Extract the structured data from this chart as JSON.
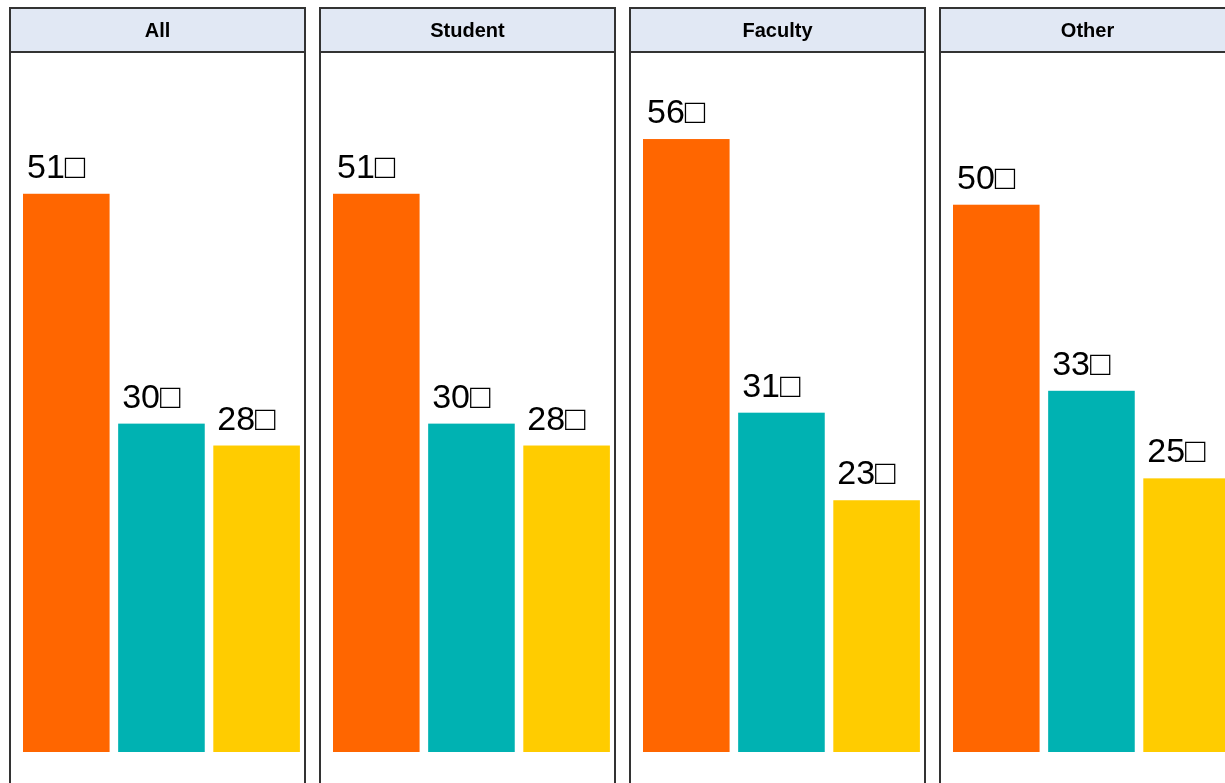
{
  "chart_data": [
    {
      "type": "bar",
      "title": "All",
      "categories": [
        null,
        null,
        null
      ],
      "values": [
        51,
        30,
        28
      ],
      "colors": [
        "#ff6600",
        "#00b2b2",
        "#ffcc00"
      ],
      "value_labels": [
        "51□",
        "30□",
        "28□"
      ]
    },
    {
      "type": "bar",
      "title": "Student",
      "categories": [
        null,
        null,
        null
      ],
      "values": [
        51,
        30,
        28
      ],
      "colors": [
        "#ff6600",
        "#00b2b2",
        "#ffcc00"
      ],
      "value_labels": [
        "51□",
        "30□",
        "28□"
      ]
    },
    {
      "type": "bar",
      "title": "Faculty",
      "categories": [
        null,
        null,
        null
      ],
      "values": [
        56,
        31,
        23
      ],
      "colors": [
        "#ff6600",
        "#00b2b2",
        "#ffcc00"
      ],
      "value_labels": [
        "56□",
        "31□",
        "23□"
      ]
    },
    {
      "type": "bar",
      "title": "Other",
      "categories": [
        null,
        null,
        null
      ],
      "values": [
        50,
        33,
        25
      ],
      "colors": [
        "#ff6600",
        "#00b2b2",
        "#ffcc00"
      ],
      "value_labels": [
        "50□",
        "33□",
        "25□"
      ]
    }
  ]
}
